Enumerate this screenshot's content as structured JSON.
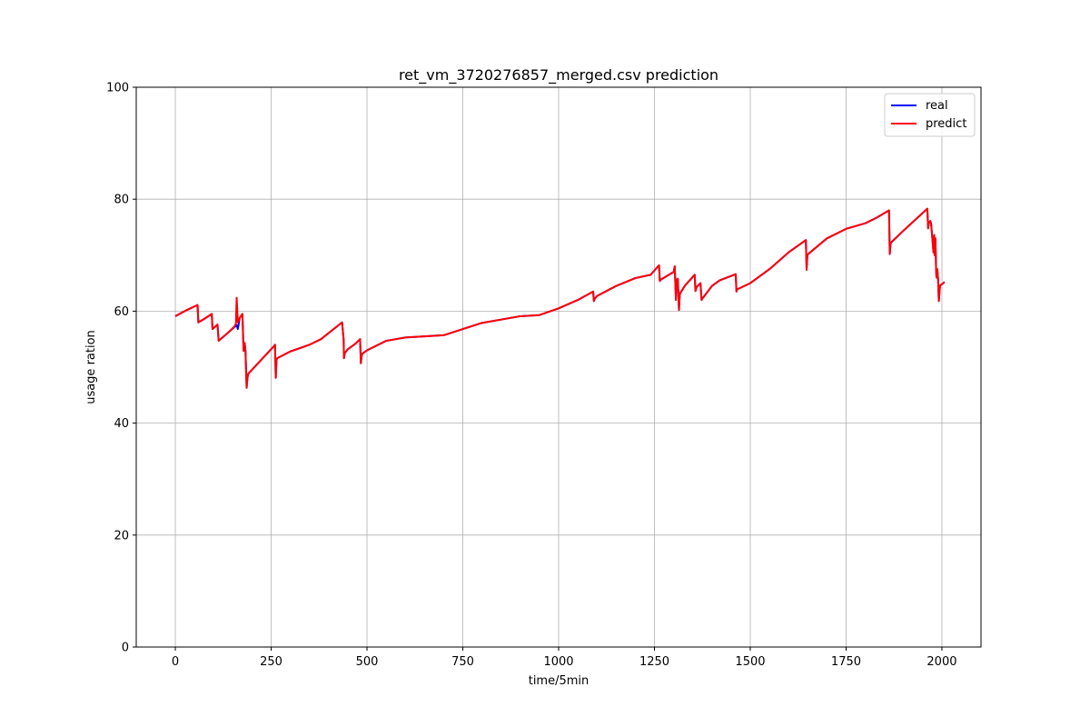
{
  "chart_data": {
    "type": "line",
    "title": "ret_vm_3720276857_merged.csv prediction",
    "xlabel": "time/5min",
    "ylabel": "usage ration",
    "xlim": [
      -102,
      2102
    ],
    "ylim": [
      0,
      100
    ],
    "xticks": [
      0,
      250,
      500,
      750,
      1000,
      1250,
      1500,
      1750,
      2000
    ],
    "yticks": [
      0,
      20,
      40,
      60,
      80,
      100
    ],
    "grid": true,
    "legend_position": "top-right",
    "colors": {
      "real": "#0000ff",
      "predict": "#ff0000"
    },
    "series": [
      {
        "name": "real",
        "x": [
          0,
          30,
          58,
          60,
          75,
          95,
          97,
          110,
          113,
          135,
          160,
          163,
          168,
          175,
          178,
          181,
          183,
          186,
          188,
          190,
          220,
          258,
          260,
          262,
          264,
          266,
          300,
          350,
          380,
          435,
          437,
          439,
          440,
          442,
          450,
          470,
          482,
          484,
          486,
          488,
          500,
          550,
          600,
          700,
          800,
          900,
          950,
          1000,
          1050,
          1090,
          1092,
          1094,
          1100,
          1150,
          1200,
          1240,
          1262,
          1264,
          1266,
          1300,
          1303,
          1306,
          1308,
          1311,
          1314,
          1316,
          1318,
          1330,
          1355,
          1357,
          1360,
          1370,
          1373,
          1375,
          1378,
          1400,
          1420,
          1462,
          1464,
          1466,
          1500,
          1520,
          1550,
          1600,
          1645,
          1647,
          1649,
          1651,
          1700,
          1750,
          1800,
          1830,
          1862,
          1864,
          1866,
          1868,
          1900,
          1935,
          1962,
          1964,
          1966,
          1968,
          1970,
          1972,
          1978,
          1980,
          1981,
          1983,
          1985,
          1986,
          1988,
          1990,
          1992,
          1995,
          2000,
          2007
        ],
        "y": [
          59.1,
          60.2,
          61.1,
          58.0,
          58.6,
          59.5,
          56.8,
          57.6,
          54.7,
          56.0,
          57.5,
          56.8,
          58.8,
          59.5,
          52.9,
          54.3,
          52.8,
          46.3,
          48.0,
          48.8,
          51.0,
          53.8,
          54.0,
          48.1,
          51.3,
          51.6,
          52.8,
          54.0,
          55.0,
          58.0,
          56.5,
          55.0,
          51.6,
          52.5,
          53.2,
          54.2,
          55.0,
          50.7,
          52.0,
          52.4,
          53.0,
          54.7,
          55.3,
          55.7,
          57.9,
          59.1,
          59.3,
          60.5,
          62.0,
          63.5,
          61.8,
          62.2,
          62.7,
          64.5,
          65.9,
          66.5,
          68.2,
          65.4,
          65.6,
          67.0,
          68.0,
          62.0,
          65.6,
          65.8,
          60.2,
          63.0,
          63.3,
          64.6,
          66.5,
          63.6,
          64.3,
          65.0,
          62.0,
          62.3,
          62.5,
          64.5,
          65.5,
          66.6,
          63.5,
          63.9,
          65.0,
          66.0,
          67.5,
          70.5,
          72.7,
          67.4,
          70.0,
          70.2,
          73.0,
          74.7,
          75.7,
          76.7,
          78.0,
          70.2,
          72.0,
          72.3,
          74.4,
          76.6,
          78.3,
          74.8,
          75.8,
          76.0,
          76.1,
          75.5,
          70.5,
          73.6,
          70.0,
          73.0,
          67.0,
          66.0,
          67.5,
          65.8,
          61.8,
          64.6,
          64.8,
          65.2
        ]
      },
      {
        "name": "predict",
        "x": [
          0,
          30,
          58,
          60,
          75,
          95,
          97,
          110,
          113,
          135,
          155,
          158,
          160,
          163,
          168,
          175,
          178,
          181,
          183,
          186,
          188,
          190,
          220,
          258,
          260,
          262,
          264,
          266,
          300,
          350,
          380,
          435,
          437,
          439,
          440,
          442,
          450,
          470,
          482,
          484,
          486,
          488,
          500,
          550,
          600,
          700,
          800,
          900,
          950,
          1000,
          1050,
          1090,
          1092,
          1094,
          1100,
          1150,
          1200,
          1240,
          1262,
          1264,
          1266,
          1300,
          1303,
          1306,
          1308,
          1311,
          1314,
          1316,
          1318,
          1330,
          1355,
          1357,
          1360,
          1370,
          1373,
          1375,
          1378,
          1400,
          1420,
          1462,
          1464,
          1466,
          1500,
          1520,
          1550,
          1600,
          1645,
          1647,
          1649,
          1651,
          1700,
          1750,
          1800,
          1830,
          1862,
          1864,
          1866,
          1868,
          1900,
          1935,
          1962,
          1964,
          1966,
          1968,
          1970,
          1972,
          1978,
          1980,
          1981,
          1983,
          1985,
          1986,
          1988,
          1990,
          1992,
          1995,
          2000,
          2007
        ],
        "y": [
          59.1,
          60.2,
          61.1,
          58.0,
          58.6,
          59.5,
          56.8,
          57.6,
          54.7,
          56.0,
          57.3,
          57.8,
          62.4,
          58.0,
          58.8,
          59.5,
          52.9,
          54.3,
          52.8,
          46.3,
          48.0,
          48.8,
          51.0,
          53.8,
          54.0,
          48.1,
          51.3,
          51.6,
          52.8,
          54.0,
          55.0,
          58.0,
          56.5,
          55.0,
          51.6,
          52.5,
          53.2,
          54.2,
          55.0,
          50.7,
          52.0,
          52.4,
          53.0,
          54.7,
          55.3,
          55.7,
          57.9,
          59.1,
          59.3,
          60.5,
          62.0,
          63.5,
          61.8,
          62.2,
          62.7,
          64.5,
          65.9,
          66.5,
          68.2,
          65.4,
          65.6,
          67.0,
          68.0,
          62.0,
          65.6,
          65.8,
          60.2,
          63.0,
          63.3,
          64.6,
          66.5,
          63.6,
          64.3,
          65.0,
          62.0,
          62.3,
          62.5,
          64.5,
          65.5,
          66.6,
          63.5,
          63.9,
          65.0,
          66.0,
          67.5,
          70.5,
          72.7,
          67.4,
          70.0,
          70.2,
          73.0,
          74.7,
          75.7,
          76.7,
          78.0,
          70.2,
          72.0,
          72.3,
          74.4,
          76.6,
          78.3,
          74.8,
          75.8,
          76.0,
          76.1,
          75.5,
          70.5,
          73.6,
          70.0,
          73.0,
          67.0,
          66.0,
          67.5,
          65.8,
          61.8,
          64.6,
          64.8,
          65.2
        ]
      }
    ]
  }
}
